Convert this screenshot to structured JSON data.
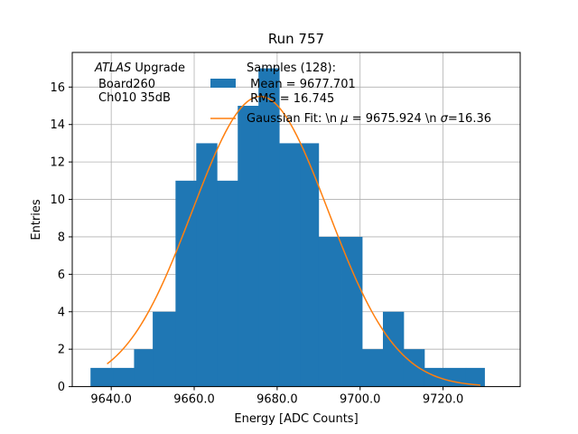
{
  "chart_data": {
    "type": "bar",
    "title": "Run 757",
    "xlabel": "Energy [ADC Counts]",
    "ylabel": "Entries",
    "xlim": [
      9630.6,
      9738.6
    ],
    "ylim": [
      0,
      17.85
    ],
    "xticks": [
      9640,
      9660,
      9680,
      9700,
      9720
    ],
    "xtick_labels": [
      "9640.0",
      "9660.0",
      "9680.0",
      "9700.0",
      "9720.0"
    ],
    "yticks": [
      0,
      2,
      4,
      6,
      8,
      10,
      12,
      14,
      16
    ],
    "ytick_labels": [
      "0",
      "2",
      "4",
      "6",
      "8",
      "10",
      "12",
      "14",
      "16"
    ],
    "grid": true,
    "bar_color": "#1f77b4",
    "fit_color": "#ff7f0e",
    "bin_edges": [
      9635.0,
      9640.5,
      9645.5,
      9650.0,
      9655.5,
      9660.5,
      9665.5,
      9670.5,
      9675.5,
      9680.5,
      9685.5,
      9690.0,
      9695.5,
      9700.5,
      9705.5,
      9710.5,
      9715.5,
      9720.5,
      9725.5,
      9730.0
    ],
    "counts": [
      1,
      1,
      2,
      4,
      11,
      13,
      11,
      15,
      17,
      13,
      13,
      8,
      8,
      2,
      4,
      2,
      1,
      1,
      1
    ],
    "fit": {
      "mu": 9675.924,
      "sigma": 16.36,
      "amplitude": 15.5,
      "x_start": 9639.0,
      "x_end": 9729.0
    },
    "annotation": {
      "lines": [
        "ATLAS Upgrade",
        "Board260",
        "Ch010 35dB"
      ]
    },
    "legend": {
      "placement": "upper-center",
      "entries": [
        {
          "type": "patch",
          "lines": [
            "Samples (128):",
            "Mean = 9677.701",
            "RMS = 16.745"
          ]
        },
        {
          "type": "line",
          "lines": [
            "Gaussian Fit: \\n μ = 9675.924 \\n σ=16.36"
          ]
        }
      ]
    }
  }
}
